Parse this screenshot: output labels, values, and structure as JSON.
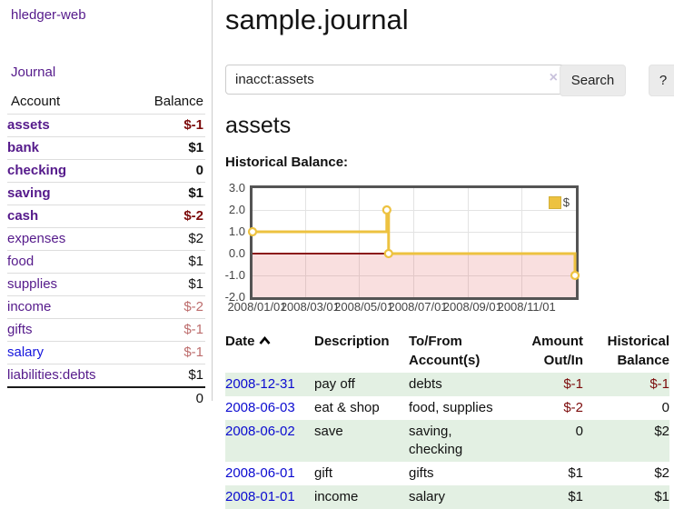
{
  "colors": {
    "link_purple": "#551a8b",
    "link_blue": "#0b0bd0",
    "negative_strong": "#7c0b0b",
    "negative_muted": "#bd6d6d",
    "row_green": "#e3f0e3",
    "button_gray": "#ebebeb",
    "chart_yellow": "#edc240"
  },
  "sidebar": {
    "brand": "hledger-web",
    "journal_link": "Journal",
    "accounts": {
      "header_account": "Account",
      "header_balance": "Balance",
      "rows": [
        {
          "name": "assets",
          "depth": 1,
          "bold": true,
          "balance": "$-1",
          "balance_style": "neg-strong"
        },
        {
          "name": "bank",
          "depth": 2,
          "bold": true,
          "balance": "$1",
          "balance_style": ""
        },
        {
          "name": "checking",
          "depth": 3,
          "bold": true,
          "balance": "0",
          "balance_style": ""
        },
        {
          "name": "saving",
          "depth": 3,
          "bold": true,
          "balance": "$1",
          "balance_style": ""
        },
        {
          "name": "cash",
          "depth": 2,
          "bold": true,
          "balance": "$-2",
          "balance_style": "neg-strong"
        },
        {
          "name": "expenses",
          "depth": 1,
          "bold": false,
          "balance": "$2",
          "balance_style": ""
        },
        {
          "name": "food",
          "depth": 2,
          "bold": false,
          "balance": "$1",
          "balance_style": ""
        },
        {
          "name": "supplies",
          "depth": 2,
          "bold": false,
          "balance": "$1",
          "balance_style": ""
        },
        {
          "name": "income",
          "depth": 1,
          "bold": false,
          "balance": "$-2",
          "balance_style": "neg-muted"
        },
        {
          "name": "gifts",
          "depth": 2,
          "bold": false,
          "balance": "$-1",
          "balance_style": "neg-muted"
        },
        {
          "name": "salary",
          "depth": 2,
          "bold": false,
          "blue": true,
          "balance": "$-1",
          "balance_style": "neg-muted"
        },
        {
          "name": "liabilities:debts",
          "depth": 1,
          "bold": false,
          "balance": "$1",
          "balance_style": ""
        }
      ],
      "total": "0"
    }
  },
  "header": {
    "title": "sample.journal"
  },
  "search": {
    "value": "inacct:assets",
    "clear_icon": "×",
    "search_button": "Search",
    "help_button": "?"
  },
  "account_page": {
    "heading": "assets",
    "chart_title": "Historical Balance:"
  },
  "chart_data": {
    "type": "line",
    "line_style": "step",
    "series": [
      {
        "name": "$",
        "color": "#edc240",
        "points": [
          [
            "2008-01-01",
            1
          ],
          [
            "2008-06-01",
            2
          ],
          [
            "2008-06-03",
            0
          ],
          [
            "2008-12-31",
            -1
          ]
        ]
      }
    ],
    "ylim": [
      -2,
      3
    ],
    "xlim": [
      "2008-01-01",
      "2009-01-01"
    ],
    "ytick_labels": [
      "3.0",
      "2.0",
      "1.0",
      "0.0",
      "-1.0",
      "-2.0"
    ],
    "xtick_labels": [
      "2008/01/01",
      "2008/03/01",
      "2008/05/01",
      "2008/07/01",
      "2008/09/01",
      "2008/11/01"
    ],
    "legend": {
      "label": "$",
      "position": "top-right"
    },
    "grid": true,
    "zero_line_color": "#8b1a1a",
    "negative_area_color": "rgba(219,80,80,0.18)"
  },
  "register_table": {
    "headers": {
      "date": "Date",
      "description": "Description",
      "accounts": "To/From Account(s)",
      "amount": "Amount Out/In",
      "balance": "Historical Balance"
    },
    "rows": [
      {
        "date": "2008-12-31",
        "description": "pay off",
        "accounts": "debts",
        "amount": "$-1",
        "amount_neg": true,
        "balance": "$-1",
        "balance_neg": true
      },
      {
        "date": "2008-06-03",
        "description": "eat & shop",
        "accounts": "food, supplies",
        "amount": "$-2",
        "amount_neg": true,
        "balance": "0",
        "balance_neg": false
      },
      {
        "date": "2008-06-02",
        "description": "save",
        "accounts": "saving, checking",
        "amount": "0",
        "amount_neg": false,
        "balance": "$2",
        "balance_neg": false
      },
      {
        "date": "2008-06-01",
        "description": "gift",
        "accounts": "gifts",
        "amount": "$1",
        "amount_neg": false,
        "balance": "$2",
        "balance_neg": false
      },
      {
        "date": "2008-01-01",
        "description": "income",
        "accounts": "salary",
        "amount": "$1",
        "amount_neg": false,
        "balance": "$1",
        "balance_neg": false
      }
    ]
  }
}
